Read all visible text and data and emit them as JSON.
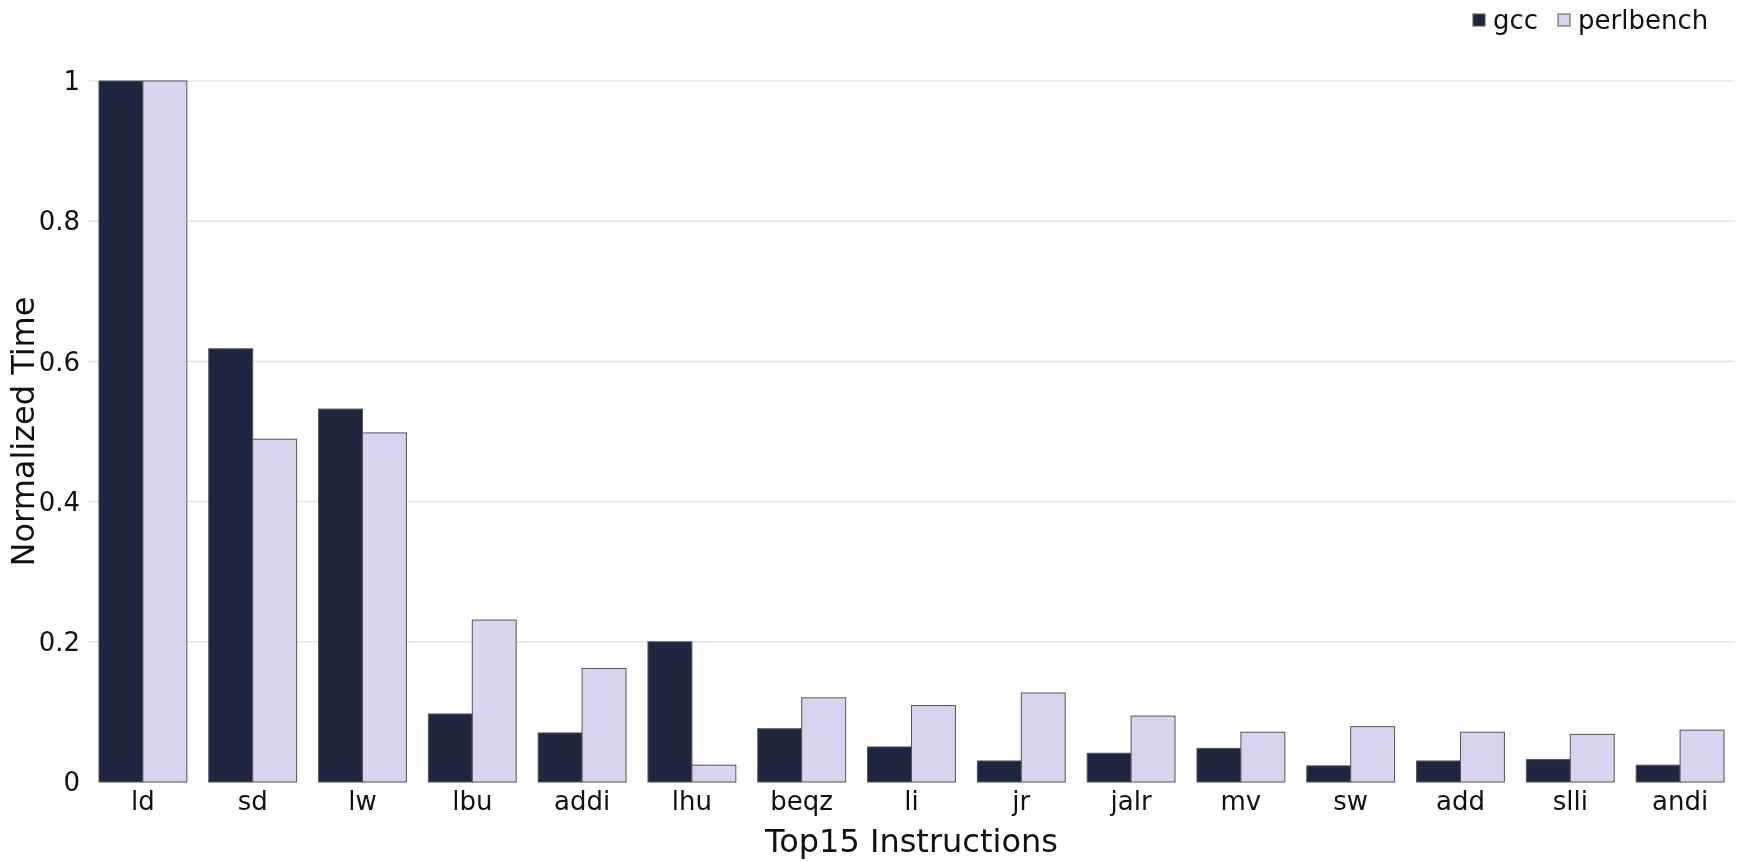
{
  "chart_data": {
    "type": "bar",
    "xlabel": "Top15 Instructions",
    "ylabel": "Normalized Time",
    "categories": [
      "ld",
      "sd",
      "lw",
      "lbu",
      "addi",
      "lhu",
      "beqz",
      "li",
      "jr",
      "jalr",
      "mv",
      "sw",
      "add",
      "slli",
      "andi"
    ],
    "series": [
      {
        "name": "gcc",
        "color": "#1f2640",
        "values": [
          1,
          0.618,
          0.532,
          0.097,
          0.07,
          0.2,
          0.076,
          0.05,
          0.03,
          0.041,
          0.048,
          0.023,
          0.03,
          0.032,
          0.024
        ]
      },
      {
        "name": "perlbench",
        "color": "#d8d3ee",
        "values": [
          1,
          0.489,
          0.498,
          0.231,
          0.162,
          0.024,
          0.12,
          0.109,
          0.127,
          0.094,
          0.071,
          0.079,
          0.071,
          0.068,
          0.074
        ]
      }
    ],
    "ylim": [
      0,
      1
    ],
    "yticks": [
      0,
      0.2,
      0.4,
      0.6,
      0.8,
      1
    ],
    "grid": "y",
    "legend": "top right"
  }
}
